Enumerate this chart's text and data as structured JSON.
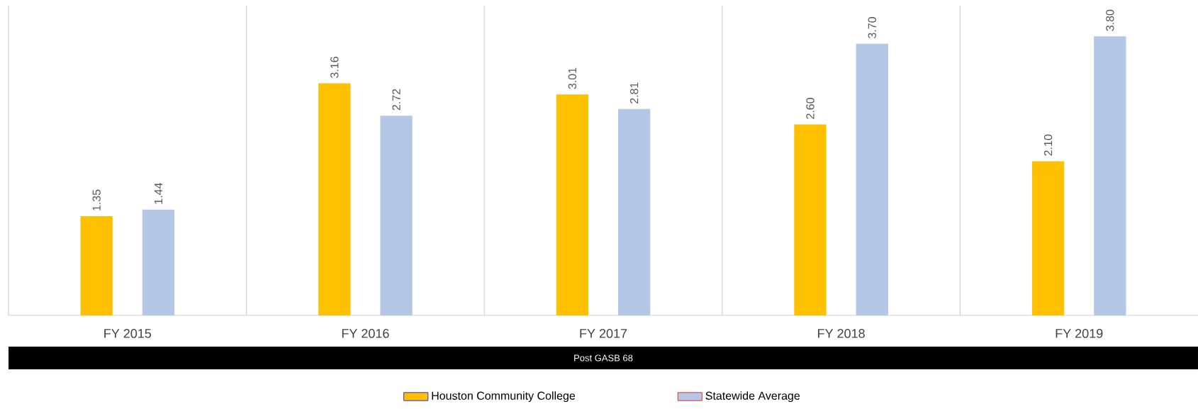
{
  "chart_data": {
    "type": "bar",
    "categories": [
      "FY 2015",
      "FY 2016",
      "FY 2017",
      "FY 2018",
      "FY 2019"
    ],
    "series": [
      {
        "name": "Houston Community College",
        "color": "#ffc000",
        "values": [
          1.35,
          3.16,
          3.01,
          2.6,
          2.1
        ],
        "value_labels": [
          "1.35",
          "3.16",
          "3.01",
          "2.60",
          "2.10"
        ]
      },
      {
        "name": "Statewide Average",
        "color": "#b4c7e7",
        "values": [
          1.44,
          2.72,
          2.81,
          3.7,
          3.8
        ],
        "value_labels": [
          "1.44",
          "2.72",
          "2.81",
          "3.70",
          "3.80"
        ]
      }
    ],
    "grid": "x",
    "legend": "bottom",
    "annotations": [
      "Post GASB 68"
    ]
  }
}
